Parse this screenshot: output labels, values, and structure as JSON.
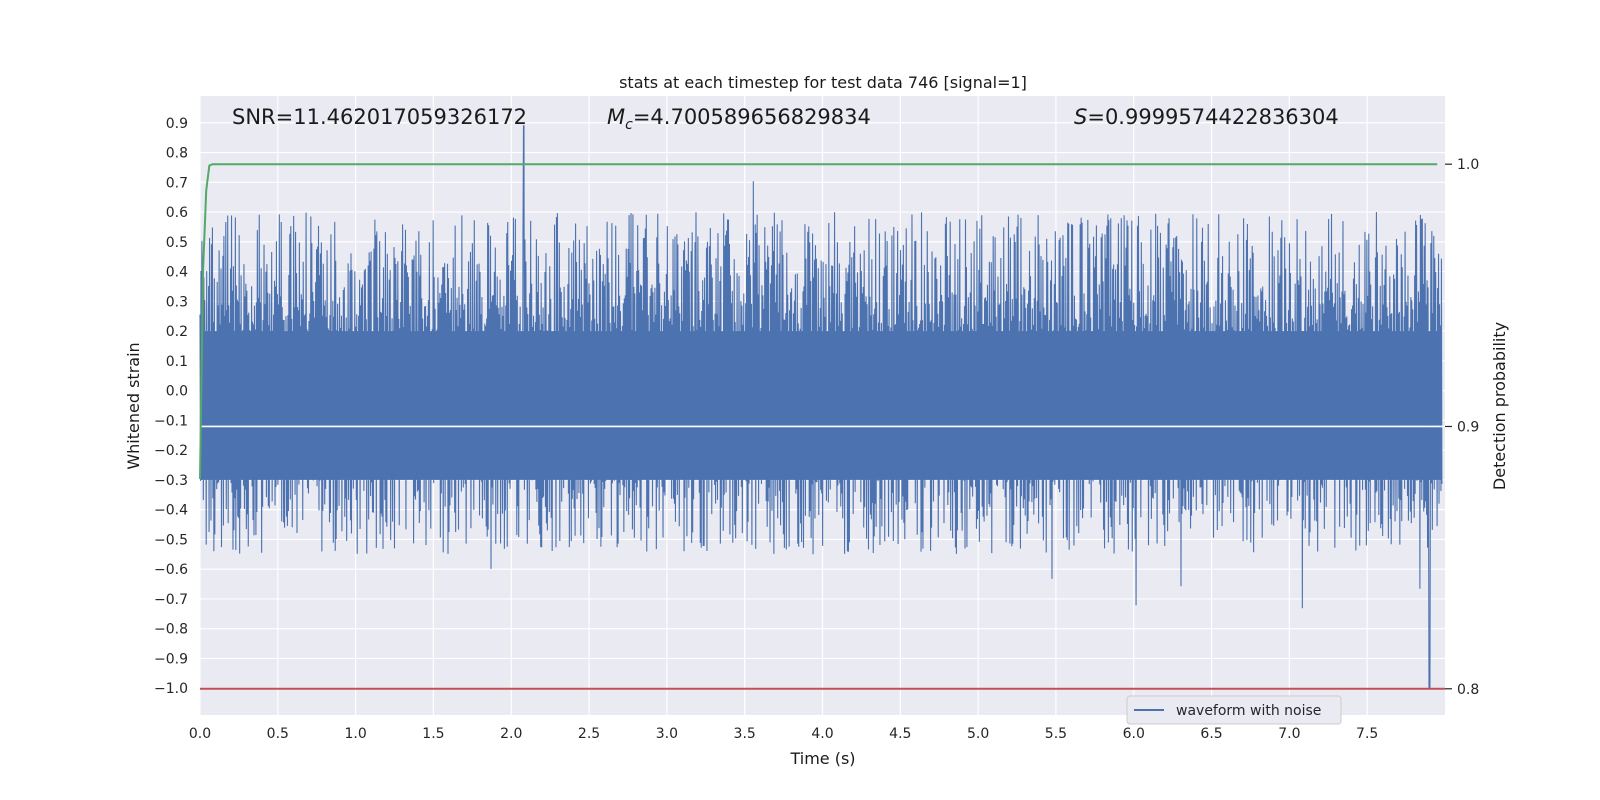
{
  "chart_data": {
    "type": "line",
    "title": "stats at each timestep for test data 746 [signal=1]",
    "xlabel": "Time (s)",
    "ylabel": "Whitened strain",
    "y2label": "Detection probability",
    "xlim": [
      0.0,
      8.0
    ],
    "ylim": [
      -1.09,
      0.99
    ],
    "y2lim": [
      0.79,
      1.026
    ],
    "xticks": [
      "0.0",
      "0.5",
      "1.0",
      "1.5",
      "2.0",
      "2.5",
      "3.0",
      "3.5",
      "4.0",
      "4.5",
      "5.0",
      "5.5",
      "6.0",
      "6.5",
      "7.0",
      "7.5"
    ],
    "yticks": [
      "0.9",
      "0.8",
      "0.7",
      "0.6",
      "0.5",
      "0.4",
      "0.3",
      "0.2",
      "0.1",
      "0.0",
      "−0.1",
      "−0.2",
      "−0.3",
      "−0.4",
      "−0.5",
      "−0.6",
      "−0.7",
      "−0.8",
      "−0.9",
      "−1.0"
    ],
    "y2ticks": [
      "1.0",
      "0.9",
      "0.8"
    ],
    "grid": true,
    "legend_position": "lower-right",
    "colors": {
      "background": "#eaeaf2",
      "grid": "#ffffff",
      "waveform": "#4c72b0",
      "probability": "#55a868",
      "threshold": "#c44e52"
    },
    "series": [
      {
        "name": "waveform with noise",
        "axis": "left",
        "description_stats": {
          "typical_range": [
            -0.55,
            0.6
          ],
          "max_spike": 0.89,
          "min_spike": -1.0,
          "spike_at_x": 2.08,
          "min_at_x": 7.9
        }
      },
      {
        "axis": "right",
        "x": [
          0.0,
          0.02,
          0.04,
          0.06,
          0.08,
          7.95
        ],
        "y": [
          0.88,
          0.96,
          0.99,
          0.9995,
          1.0,
          1.0
        ]
      },
      {
        "axis": "right",
        "x": [
          0.0,
          8.0
        ],
        "y": [
          0.8,
          0.8
        ]
      }
    ],
    "annotations": {
      "snr": "SNR=11.462017059326172",
      "mc_prefix": "M",
      "mc_sub": "c",
      "mc_value": "=4.700589656829834",
      "s_prefix": "S",
      "s_value": "=0.9999574422836304"
    }
  }
}
